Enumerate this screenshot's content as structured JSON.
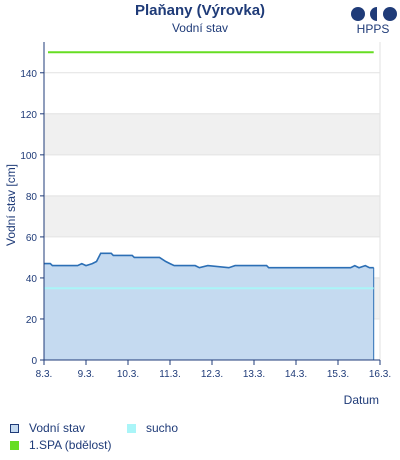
{
  "header": {
    "title": "Plaňany (Výrovka)",
    "subtitle": "Vodní stav",
    "logo_text": "HPPS"
  },
  "colors": {
    "text": "#1f3b78",
    "water_line": "#2c6fb5",
    "water_fill": "#c5daf0",
    "sucho": "#aaf5f8",
    "spa1": "#66dd22",
    "band": "#f0f0f0"
  },
  "chart_data": {
    "type": "area",
    "title": "Plaňany (Výrovka)",
    "subtitle": "Vodní stav",
    "xlabel": "Datum",
    "ylabel": "Vodní stav [cm]",
    "ylim": [
      0,
      155
    ],
    "yticks": [
      0,
      20,
      40,
      60,
      80,
      100,
      120,
      140
    ],
    "xlim": [
      8,
      16
    ],
    "xticks": [
      {
        "x": 8,
        "label": "8.3."
      },
      {
        "x": 9,
        "label": "9.3."
      },
      {
        "x": 10,
        "label": "10.3."
      },
      {
        "x": 11,
        "label": "11.3."
      },
      {
        "x": 12,
        "label": "12.3."
      },
      {
        "x": 13,
        "label": "13.3."
      },
      {
        "x": 14,
        "label": "14.3."
      },
      {
        "x": 15,
        "label": "15.3."
      },
      {
        "x": 16,
        "label": "16.3."
      }
    ],
    "series": [
      {
        "name": "Vodní stav",
        "points": [
          [
            8.0,
            47
          ],
          [
            8.15,
            47
          ],
          [
            8.2,
            46
          ],
          [
            8.5,
            46
          ],
          [
            8.8,
            46
          ],
          [
            8.9,
            47
          ],
          [
            9.0,
            46
          ],
          [
            9.15,
            47
          ],
          [
            9.25,
            48
          ],
          [
            9.35,
            52
          ],
          [
            9.6,
            52
          ],
          [
            9.65,
            51
          ],
          [
            10.1,
            51
          ],
          [
            10.15,
            50
          ],
          [
            10.75,
            50
          ],
          [
            10.9,
            48
          ],
          [
            11.0,
            47
          ],
          [
            11.1,
            46
          ],
          [
            11.6,
            46
          ],
          [
            11.7,
            45
          ],
          [
            11.9,
            46
          ],
          [
            12.4,
            45
          ],
          [
            12.55,
            46
          ],
          [
            13.3,
            46
          ],
          [
            13.35,
            45
          ],
          [
            14.2,
            45
          ],
          [
            15.3,
            45
          ],
          [
            15.4,
            46
          ],
          [
            15.5,
            45
          ],
          [
            15.65,
            46
          ],
          [
            15.75,
            45
          ],
          [
            15.85,
            45
          ]
        ]
      },
      {
        "name": "sucho",
        "value": 35
      },
      {
        "name": "1.SPA (bdělost)",
        "value": 150
      }
    ],
    "grid": true,
    "legend": "bottom-left"
  },
  "legend": {
    "items": [
      {
        "label": "Vodní stav"
      },
      {
        "label": "sucho"
      },
      {
        "label": "1.SPA (bdělost)"
      }
    ]
  }
}
